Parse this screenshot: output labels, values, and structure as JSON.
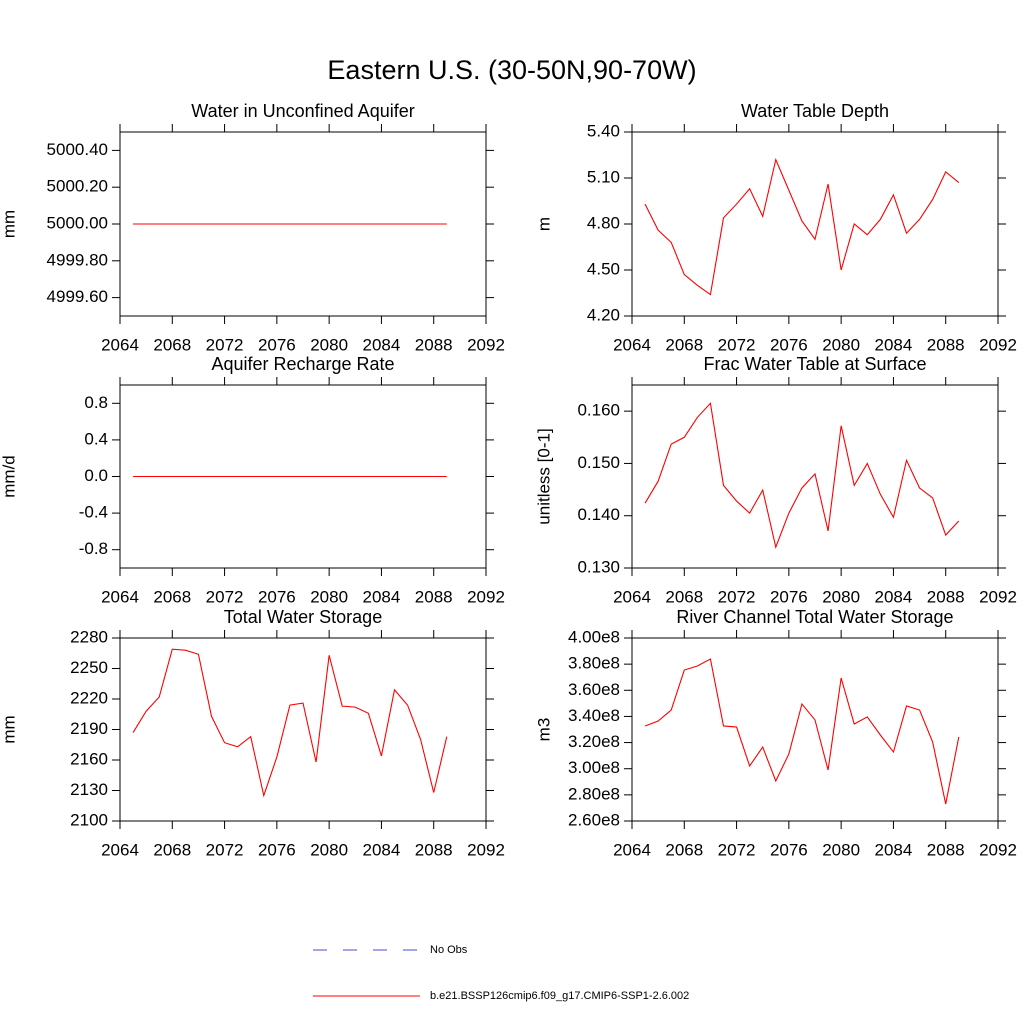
{
  "title": "Eastern U.S. (30-50N,90-70W)",
  "legend": [
    {
      "label": "No Obs",
      "color": "#4a4ad8",
      "dash": true
    },
    {
      "label": "b.e21.BSSP126cmip6.f09_g17.CMIP6-SSP1-2.6.002",
      "color": "#ff0000",
      "dash": false
    }
  ],
  "chart_data": [
    {
      "type": "line",
      "title": "Water in Unconfined Aquifer",
      "y_label": "mm",
      "x": [
        2065,
        2066,
        2067,
        2068,
        2069,
        2070,
        2071,
        2072,
        2073,
        2074,
        2075,
        2076,
        2077,
        2078,
        2079,
        2080,
        2081,
        2082,
        2083,
        2084,
        2085,
        2086,
        2087,
        2088,
        2089
      ],
      "xlim": [
        2064,
        2092
      ],
      "xticks": [
        2064,
        2068,
        2072,
        2076,
        2080,
        2084,
        2088,
        2092
      ],
      "ylim": [
        4999.5,
        5000.5
      ],
      "yticks": [
        {
          "value": 4999.6,
          "label": "4999.60"
        },
        {
          "value": 4999.8,
          "label": "4999.80"
        },
        {
          "value": 5000,
          "label": "5000.00"
        },
        {
          "value": 5000.2,
          "label": "5000.20"
        },
        {
          "value": 5000.4,
          "label": "5000.40"
        }
      ],
      "series": [
        {
          "color": "#ff0000",
          "values": [
            5000,
            5000,
            5000,
            5000,
            5000,
            5000,
            5000,
            5000,
            5000,
            5000,
            5000,
            5000,
            5000,
            5000,
            5000,
            5000,
            5000,
            5000,
            5000,
            5000,
            5000,
            5000,
            5000,
            5000,
            5000
          ]
        }
      ]
    },
    {
      "type": "line",
      "title": "Water Table Depth",
      "y_label": "m",
      "x": [
        2065,
        2066,
        2067,
        2068,
        2069,
        2070,
        2071,
        2072,
        2073,
        2074,
        2075,
        2076,
        2077,
        2078,
        2079,
        2080,
        2081,
        2082,
        2083,
        2084,
        2085,
        2086,
        2087,
        2088,
        2089
      ],
      "xlim": [
        2064,
        2092
      ],
      "xticks": [
        2064,
        2068,
        2072,
        2076,
        2080,
        2084,
        2088,
        2092
      ],
      "ylim": [
        4.2,
        5.4
      ],
      "yticks": [
        {
          "value": 4.2,
          "label": "4.20"
        },
        {
          "value": 4.5,
          "label": "4.50"
        },
        {
          "value": 4.8,
          "label": "4.80"
        },
        {
          "value": 5.1,
          "label": "5.10"
        },
        {
          "value": 5.4,
          "label": "5.40"
        }
      ],
      "series": [
        {
          "color": "#ff0000",
          "values": [
            4.93,
            4.76,
            4.68,
            4.47,
            4.4,
            4.34,
            4.84,
            4.93,
            5.03,
            4.85,
            5.22,
            5.02,
            4.82,
            4.7,
            5.06,
            4.5,
            4.8,
            4.73,
            4.83,
            4.99,
            4.74,
            4.83,
            4.96,
            5.14,
            5.07
          ]
        }
      ]
    },
    {
      "type": "line",
      "title": "Aquifer Recharge Rate",
      "y_label": "mm/d",
      "x": [
        2065,
        2066,
        2067,
        2068,
        2069,
        2070,
        2071,
        2072,
        2073,
        2074,
        2075,
        2076,
        2077,
        2078,
        2079,
        2080,
        2081,
        2082,
        2083,
        2084,
        2085,
        2086,
        2087,
        2088,
        2089
      ],
      "xlim": [
        2064,
        2092
      ],
      "xticks": [
        2064,
        2068,
        2072,
        2076,
        2080,
        2084,
        2088,
        2092
      ],
      "ylim": [
        -1,
        1
      ],
      "yticks": [
        {
          "value": -0.8,
          "label": "-0.8"
        },
        {
          "value": -0.4,
          "label": "-0.4"
        },
        {
          "value": 0,
          "label": "0.0"
        },
        {
          "value": 0.4,
          "label": "0.4"
        },
        {
          "value": 0.8,
          "label": "0.8"
        }
      ],
      "series": [
        {
          "color": "#ff0000",
          "values": [
            0,
            0,
            0,
            0,
            0,
            0,
            0,
            0,
            0,
            0,
            0,
            0,
            0,
            0,
            0,
            0,
            0,
            0,
            0,
            0,
            0,
            0,
            0,
            0,
            0
          ]
        }
      ]
    },
    {
      "type": "line",
      "title": "Frac Water Table at Surface",
      "y_label": "unitless [0-1]",
      "x": [
        2065,
        2066,
        2067,
        2068,
        2069,
        2070,
        2071,
        2072,
        2073,
        2074,
        2075,
        2076,
        2077,
        2078,
        2079,
        2080,
        2081,
        2082,
        2083,
        2084,
        2085,
        2086,
        2087,
        2088,
        2089
      ],
      "xlim": [
        2064,
        2092
      ],
      "xticks": [
        2064,
        2068,
        2072,
        2076,
        2080,
        2084,
        2088,
        2092
      ],
      "ylim": [
        0.13,
        0.165
      ],
      "yticks": [
        {
          "value": 0.13,
          "label": "0.130"
        },
        {
          "value": 0.14,
          "label": "0.140"
        },
        {
          "value": 0.15,
          "label": "0.150"
        },
        {
          "value": 0.16,
          "label": "0.160"
        }
      ],
      "series": [
        {
          "color": "#ff0000",
          "values": [
            0.1424,
            0.1466,
            0.1537,
            0.155,
            0.1588,
            0.1615,
            0.1458,
            0.1428,
            0.1405,
            0.1449,
            0.134,
            0.1405,
            0.1453,
            0.148,
            0.1371,
            0.1572,
            0.1458,
            0.15,
            0.1441,
            0.1397,
            0.1506,
            0.1453,
            0.1434,
            0.1363,
            0.139
          ]
        }
      ]
    },
    {
      "type": "line",
      "title": "Total Water Storage",
      "y_label": "mm",
      "x": [
        2065,
        2066,
        2067,
        2068,
        2069,
        2070,
        2071,
        2072,
        2073,
        2074,
        2075,
        2076,
        2077,
        2078,
        2079,
        2080,
        2081,
        2082,
        2083,
        2084,
        2085,
        2086,
        2087,
        2088,
        2089
      ],
      "xlim": [
        2064,
        2092
      ],
      "xticks": [
        2064,
        2068,
        2072,
        2076,
        2080,
        2084,
        2088,
        2092
      ],
      "ylim": [
        2100,
        2280
      ],
      "yticks": [
        2100,
        2130,
        2160,
        2190,
        2220,
        2250,
        2280
      ],
      "series": [
        {
          "color": "#ff0000",
          "values": [
            2187,
            2208,
            2222,
            2269,
            2268,
            2264,
            2203,
            2177,
            2173,
            2183,
            2125,
            2163,
            2214,
            2216,
            2158,
            2263,
            2213,
            2212,
            2206,
            2164,
            2229,
            2214,
            2180,
            2128,
            2183
          ]
        }
      ]
    },
    {
      "type": "line",
      "title": "River Channel Total Water Storage",
      "y_label": "m3",
      "x": [
        2065,
        2066,
        2067,
        2068,
        2069,
        2070,
        2071,
        2072,
        2073,
        2074,
        2075,
        2076,
        2077,
        2078,
        2079,
        2080,
        2081,
        2082,
        2083,
        2084,
        2085,
        2086,
        2087,
        2088,
        2089
      ],
      "xlim": [
        2064,
        2092
      ],
      "xticks": [
        2064,
        2068,
        2072,
        2076,
        2080,
        2084,
        2088,
        2092
      ],
      "ylim": [
        260000000,
        400000000
      ],
      "yticks": [
        {
          "value": 260000000,
          "label": "2.60e8"
        },
        {
          "value": 280000000,
          "label": "2.80e8"
        },
        {
          "value": 300000000,
          "label": "3.00e8"
        },
        {
          "value": 320000000,
          "label": "3.20e8"
        },
        {
          "value": 340000000,
          "label": "3.40e8"
        },
        {
          "value": 360000000,
          "label": "3.60e8"
        },
        {
          "value": 380000000,
          "label": "3.80e8"
        },
        {
          "value": 400000000,
          "label": "4.00e8"
        }
      ],
      "series": [
        {
          "color": "#ff0000",
          "values": [
            332700000,
            336500000,
            344900000,
            375500000,
            378600000,
            383900000,
            332700000,
            331900000,
            302100000,
            316600000,
            290600000,
            311300000,
            349500000,
            337300000,
            299000000,
            369400000,
            334200000,
            339600000,
            325800000,
            312800000,
            348000000,
            344900000,
            320400000,
            273000000,
            324300000
          ]
        }
      ]
    }
  ]
}
